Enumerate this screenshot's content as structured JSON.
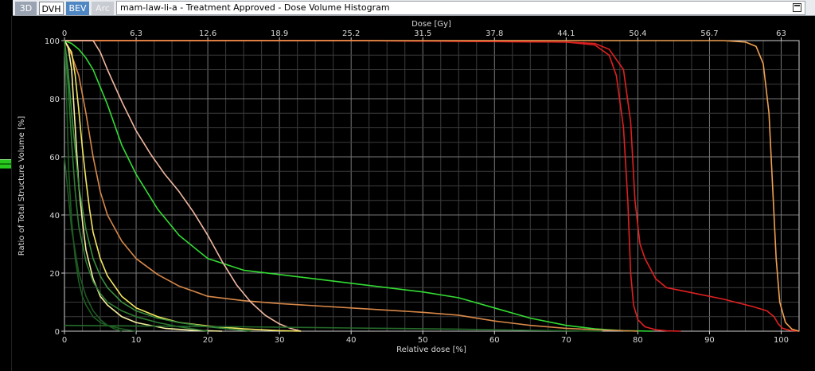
{
  "toolbar": {
    "tabs": [
      {
        "label": "3D"
      },
      {
        "label": "DVH"
      },
      {
        "label": "BEV"
      },
      {
        "label": "Arc"
      }
    ],
    "window_title": "mam-law-li-a - Treatment Approved - Dose Volume Histogram"
  },
  "chart_data": {
    "type": "line",
    "xlabel": "Relative dose [%]",
    "x2label": "Dose [Gy]",
    "ylabel": "Ratio of Total Structure Volume [%]",
    "xlim": [
      0,
      102.5
    ],
    "ylim": [
      0,
      100
    ],
    "x_ticks": [
      0,
      10,
      20,
      30,
      40,
      50,
      60,
      70,
      80,
      90,
      100
    ],
    "x2_ticks": [
      "0",
      "6.3",
      "12.6",
      "18.9",
      "25.2",
      "31.5",
      "37.8",
      "44.1",
      "50.4",
      "56.7",
      "63"
    ],
    "y_ticks": [
      0,
      20,
      40,
      60,
      80,
      100
    ],
    "grid": true,
    "series": [
      {
        "color": "#e02020",
        "x": [
          0,
          40,
          70,
          74,
          76,
          77,
          78,
          78.6,
          79,
          79.4,
          80,
          81,
          82.5,
          84,
          86
        ],
        "y": [
          100,
          100,
          99.5,
          98.5,
          95,
          88,
          70,
          45,
          20,
          9,
          4,
          1.5,
          0.5,
          0.1,
          0
        ]
      },
      {
        "color": "#e02020",
        "x": [
          0,
          40,
          70,
          74,
          76,
          78,
          79,
          79.6,
          80.3,
          81,
          82.5,
          84,
          87,
          92,
          96,
          98,
          99,
          99.6,
          100.2,
          101.2,
          102.5
        ],
        "y": [
          100,
          100,
          99.5,
          99,
          97,
          90,
          72,
          45,
          30,
          25,
          18,
          15,
          13.5,
          11,
          8.5,
          7,
          5,
          2.5,
          1,
          0.3,
          0
        ]
      },
      {
        "color": "#f0a050",
        "x": [
          0,
          70,
          92,
          95,
          96.5,
          97.5,
          98.3,
          98.8,
          99.3,
          99.8,
          100.6,
          101.5,
          102.5
        ],
        "y": [
          100,
          100,
          100,
          99.5,
          98,
          92,
          75,
          50,
          25,
          10,
          3,
          0.7,
          0
        ]
      },
      {
        "color": "#33dd33",
        "x": [
          0,
          1,
          2,
          3,
          4,
          6,
          8,
          10,
          13,
          16,
          20,
          25,
          30,
          40,
          50,
          55,
          60,
          65,
          70,
          74,
          78,
          82
        ],
        "y": [
          100,
          99,
          97,
          94,
          90,
          78,
          64,
          54,
          42,
          33,
          25,
          21,
          19.5,
          16.5,
          13.5,
          11.5,
          8,
          4.5,
          2,
          0.8,
          0.2,
          0
        ]
      },
      {
        "color": "#d88848",
        "x": [
          0,
          1,
          2,
          3,
          4,
          5,
          6,
          8,
          10,
          13,
          16,
          20,
          25,
          30,
          40,
          50,
          55,
          60,
          65,
          70,
          75,
          80
        ],
        "y": [
          100,
          95,
          88,
          75,
          60,
          48,
          40,
          31,
          25,
          19.5,
          15.5,
          12,
          10.5,
          9.5,
          8,
          6.5,
          5.5,
          3.5,
          2,
          1,
          0.4,
          0
        ]
      },
      {
        "color": "#f0b8a0",
        "x": [
          0,
          4,
          5,
          6,
          8,
          10,
          12,
          14,
          16,
          18,
          20,
          22,
          24,
          26,
          28,
          30,
          31.5,
          33
        ],
        "y": [
          100,
          100,
          96,
          90,
          79,
          69,
          61,
          54,
          48,
          41,
          33,
          24,
          16,
          10,
          5.5,
          2.5,
          1,
          0
        ]
      },
      {
        "color": "#f4e860",
        "x": [
          0,
          1,
          1.5,
          2,
          2.5,
          3,
          3.5,
          4,
          5,
          6,
          8,
          10,
          13,
          16,
          20,
          25,
          30,
          33
        ],
        "y": [
          100,
          96,
          88,
          76,
          63,
          52,
          42,
          34,
          25,
          19,
          12,
          8,
          5,
          3,
          1.8,
          0.8,
          0.2,
          0
        ]
      },
      {
        "color": "#f8f0a0",
        "x": [
          0,
          0.5,
          1,
          1.5,
          2,
          2.5,
          3,
          4,
          5,
          6,
          8,
          10,
          14,
          18,
          22
        ],
        "y": [
          100,
          98,
          90,
          70,
          50,
          38,
          28,
          18,
          12,
          9,
          5,
          3,
          1,
          0.3,
          0
        ]
      },
      {
        "color": "#2e7d32",
        "x": [
          0,
          0.5,
          1,
          1.5,
          2,
          3,
          4,
          5,
          6,
          8,
          10,
          13,
          16,
          20
        ],
        "y": [
          100,
          85,
          65,
          48,
          36,
          24,
          17,
          13,
          10,
          7,
          5,
          3,
          1.5,
          0
        ]
      },
      {
        "color": "#1b5e20",
        "x": [
          0,
          0.3,
          0.6,
          1,
          1.5,
          2,
          2.5,
          3,
          4,
          5,
          6,
          8,
          10
        ],
        "y": [
          100,
          80,
          55,
          38,
          25,
          17,
          12,
          9,
          5,
          3,
          2,
          0.8,
          0
        ]
      },
      {
        "color": "#388e3c",
        "x": [
          0,
          0.5,
          1,
          2,
          3,
          4,
          5,
          6,
          8,
          10,
          13,
          16,
          20,
          26
        ],
        "y": [
          100,
          90,
          75,
          50,
          35,
          25,
          19,
          15,
          10,
          7,
          4.5,
          3,
          1.5,
          0
        ]
      },
      {
        "color": "#256b2a",
        "x": [
          0,
          5,
          15,
          25,
          40,
          55,
          65,
          75
        ],
        "y": [
          2,
          1.9,
          1.7,
          1.5,
          1.1,
          0.7,
          0.3,
          0
        ]
      },
      {
        "color": "#1e5a22",
        "x": [
          0,
          1,
          2,
          3,
          4,
          5,
          6,
          7,
          8
        ],
        "y": [
          60,
          35,
          20,
          12,
          7,
          4,
          2,
          0.8,
          0
        ]
      }
    ]
  }
}
